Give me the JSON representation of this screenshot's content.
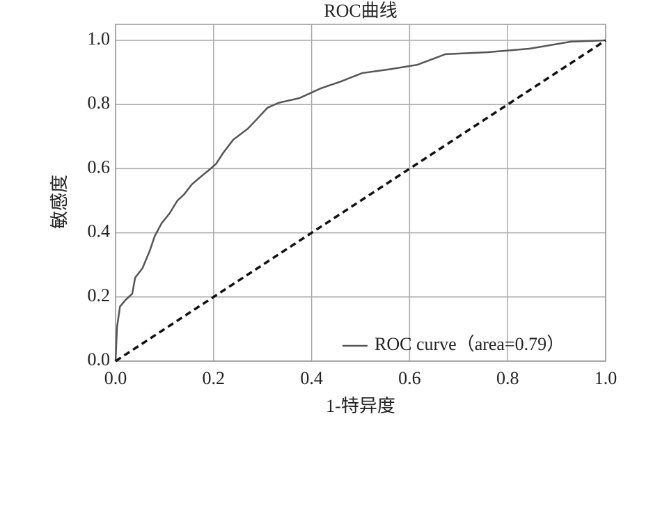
{
  "chart_data": {
    "type": "line",
    "title": "ROC曲线",
    "x_label": "1-特异度",
    "y_label": "敏感度",
    "series": [
      {
        "name": "ROC curve（area=0.79）",
        "color": "#555555",
        "linestyle": "solid",
        "x": [
          0,
          0.003,
          0.009,
          0.02,
          0.034,
          0.04,
          0.055,
          0.07,
          0.08,
          0.094,
          0.11,
          0.126,
          0.14,
          0.155,
          0.17,
          0.19,
          0.205,
          0.22,
          0.24,
          0.27,
          0.29,
          0.31,
          0.332,
          0.375,
          0.418,
          0.46,
          0.503,
          0.56,
          0.616,
          0.673,
          0.758,
          0.844,
          0.929,
          1
        ],
        "values": [
          0,
          0.106,
          0.17,
          0.19,
          0.21,
          0.26,
          0.29,
          0.345,
          0.39,
          0.43,
          0.46,
          0.5,
          0.52,
          0.55,
          0.57,
          0.595,
          0.615,
          0.65,
          0.69,
          0.725,
          0.757,
          0.79,
          0.805,
          0.82,
          0.85,
          0.872,
          0.898,
          0.91,
          0.924,
          0.957,
          0.963,
          0.974,
          0.996,
          1
        ]
      },
      {
        "color": "#111111",
        "linestyle": "dashed",
        "x": [
          0,
          1
        ],
        "values": [
          0,
          1
        ]
      }
    ],
    "xlim": [
      0,
      1
    ],
    "ylim": [
      0,
      1.05
    ],
    "xticks": [
      {
        "value": 0,
        "label": "0.0"
      },
      0.2,
      0.4,
      0.6,
      0.8,
      {
        "value": 1,
        "label": "1.0"
      }
    ],
    "yticks": [
      {
        "value": 0,
        "label": "0.0"
      },
      0.2,
      0.4,
      0.6,
      0.8,
      {
        "value": 1,
        "label": "1.0"
      }
    ],
    "grid": true,
    "legend": "lower right"
  }
}
